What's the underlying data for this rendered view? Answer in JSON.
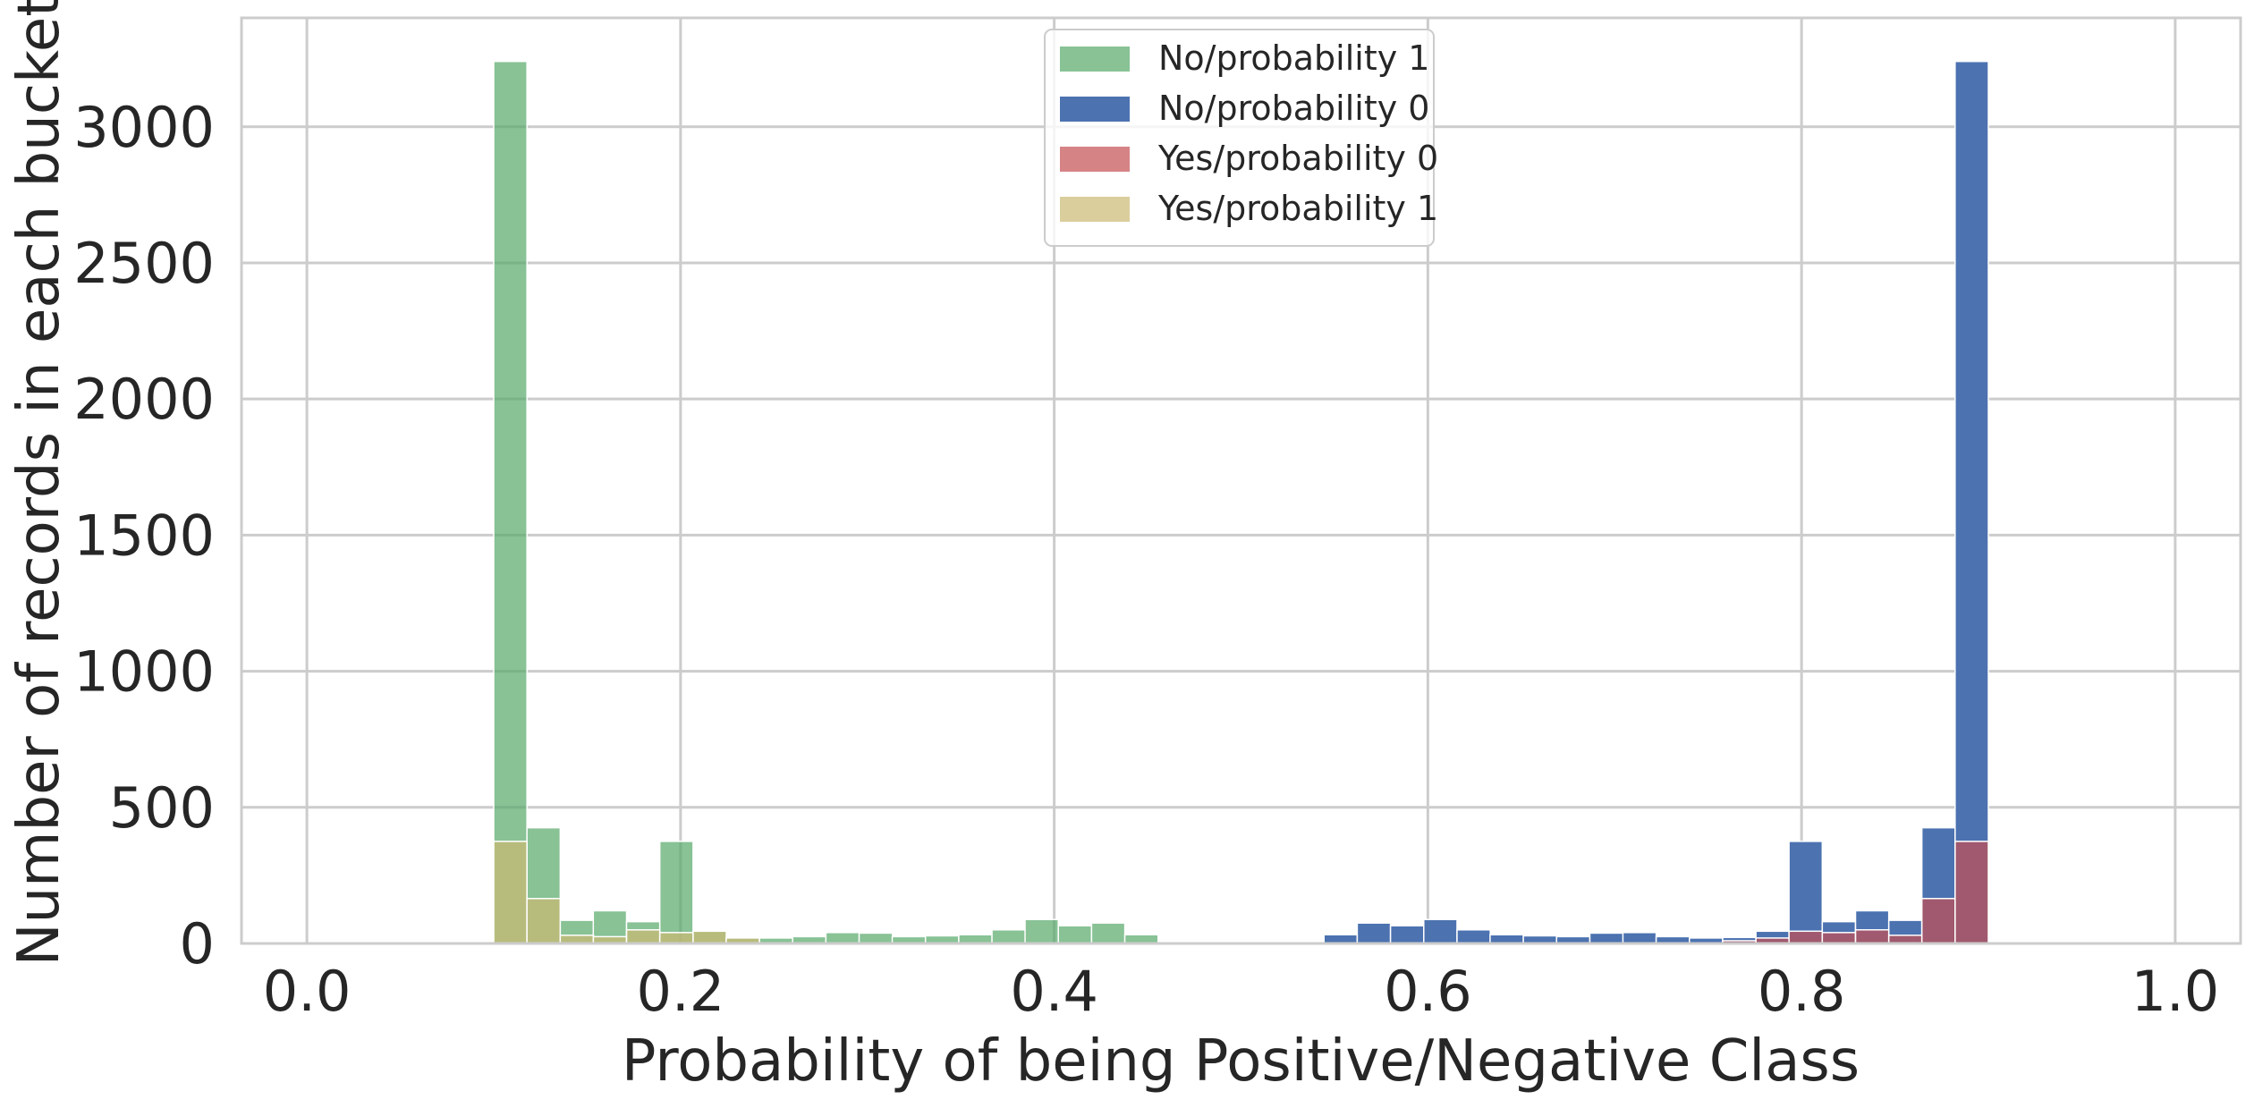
{
  "chart_data": {
    "type": "bar",
    "xlabel": "Probability of being Positive/Negative Class",
    "ylabel": "Number of records in each bucket",
    "xlim": [
      -0.035,
      1.035
    ],
    "ylim": [
      0,
      3400
    ],
    "xticks": [
      "0.0",
      "0.2",
      "0.4",
      "0.6",
      "0.8",
      "1.0"
    ],
    "xtick_values": [
      0.0,
      0.2,
      0.4,
      0.6,
      0.8,
      1.0
    ],
    "yticks": [
      "0",
      "500",
      "1000",
      "1500",
      "2000",
      "2500",
      "3000"
    ],
    "ytick_values": [
      0,
      500,
      1000,
      1500,
      2000,
      2500,
      3000
    ],
    "grid": true,
    "legend_position": "top-center",
    "bin_width": 0.0178,
    "series": [
      {
        "name": "No/probability 1",
        "color": "#55a868",
        "opacity": 0.7,
        "bin_starts": [
          0.1,
          0.1178,
          0.1356,
          0.1533,
          0.1711,
          0.1889,
          0.2067,
          0.2244,
          0.2422,
          0.26,
          0.2778,
          0.2956,
          0.3133,
          0.3311,
          0.3489,
          0.3667,
          0.3844,
          0.4022,
          0.42,
          0.4378
        ],
        "values": [
          3240,
          425,
          85,
          120,
          80,
          375,
          45,
          22,
          20,
          25,
          40,
          38,
          25,
          28,
          32,
          50,
          88,
          65,
          75,
          32
        ]
      },
      {
        "name": "No/probability 0",
        "color": "#4c72b0",
        "opacity": 1,
        "bin_starts": [
          0.5444,
          0.5622,
          0.58,
          0.5978,
          0.6156,
          0.6333,
          0.6511,
          0.6689,
          0.6867,
          0.7044,
          0.7222,
          0.74,
          0.7578,
          0.7756,
          0.7933,
          0.8111,
          0.8289,
          0.8467,
          0.8644,
          0.8822
        ],
        "values": [
          32,
          75,
          65,
          88,
          50,
          32,
          28,
          25,
          38,
          40,
          25,
          20,
          22,
          45,
          375,
          80,
          120,
          85,
          425,
          3240
        ]
      },
      {
        "name": "Yes/probability 0",
        "color": "#c44e52",
        "opacity": 0.7,
        "bin_starts": [
          0.7578,
          0.7756,
          0.7933,
          0.8111,
          0.8289,
          0.8467,
          0.8644,
          0.8822
        ],
        "values": [
          10,
          20,
          45,
          40,
          50,
          30,
          165,
          375
        ]
      },
      {
        "name": "Yes/probability 1",
        "color": "#ccb974",
        "opacity": 0.7,
        "bin_starts": [
          0.1,
          0.1178,
          0.1356,
          0.1533,
          0.1711,
          0.1889,
          0.2067,
          0.2244
        ],
        "values": [
          375,
          165,
          30,
          25,
          50,
          40,
          45,
          20
        ]
      }
    ]
  }
}
